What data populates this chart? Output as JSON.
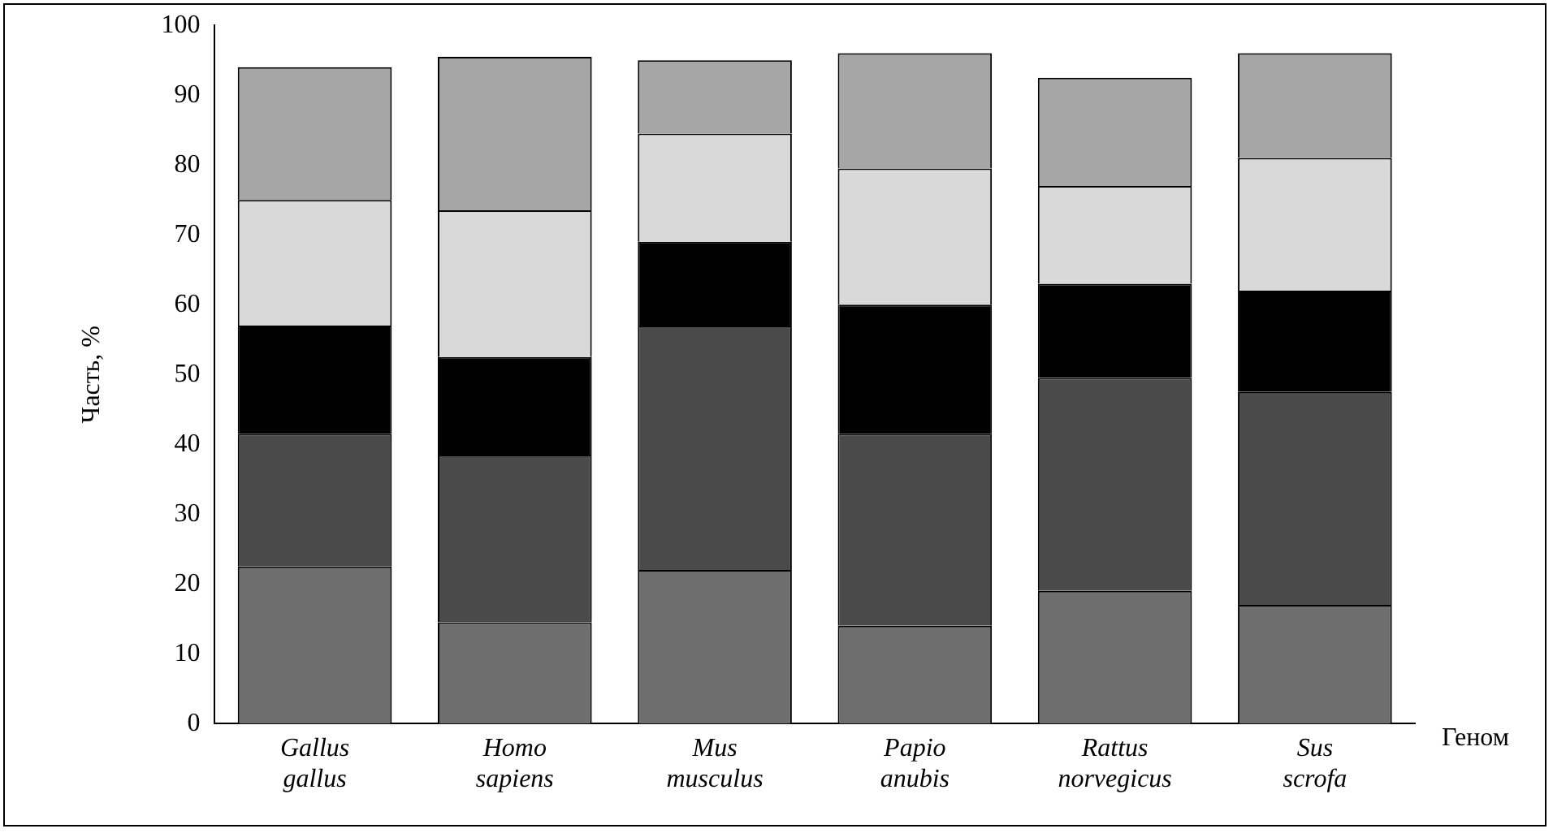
{
  "chart_data": {
    "type": "bar",
    "stacked": true,
    "xlabel": "Геном",
    "ylabel": "Часть, %",
    "categories": [
      "Gallus gallus",
      "Homo sapiens",
      "Mus musculus",
      "Papio anubis",
      "Rattus norvegicus",
      "Sus scrofa"
    ],
    "series": [
      {
        "color": "#6e6e6e",
        "values": [
          22.5,
          14.5,
          22,
          14,
          19,
          17
        ]
      },
      {
        "color": "#4a4a4a",
        "values": [
          19,
          24,
          35,
          27.5,
          30.5,
          30.5
        ]
      },
      {
        "color": "#000000",
        "values": [
          15.5,
          14,
          12,
          18.5,
          13.5,
          14.5
        ]
      },
      {
        "color": "#d9d9d9",
        "values": [
          18,
          21,
          15.5,
          19.5,
          14,
          19
        ]
      },
      {
        "color": "#a6a6a6",
        "values": [
          19,
          22,
          10.5,
          16.5,
          15.5,
          15
        ]
      }
    ],
    "ylim": [
      0,
      100
    ],
    "yticks": [
      0,
      10,
      20,
      30,
      40,
      50,
      60,
      70,
      80,
      90,
      100
    ],
    "grid": false,
    "legend": false
  }
}
